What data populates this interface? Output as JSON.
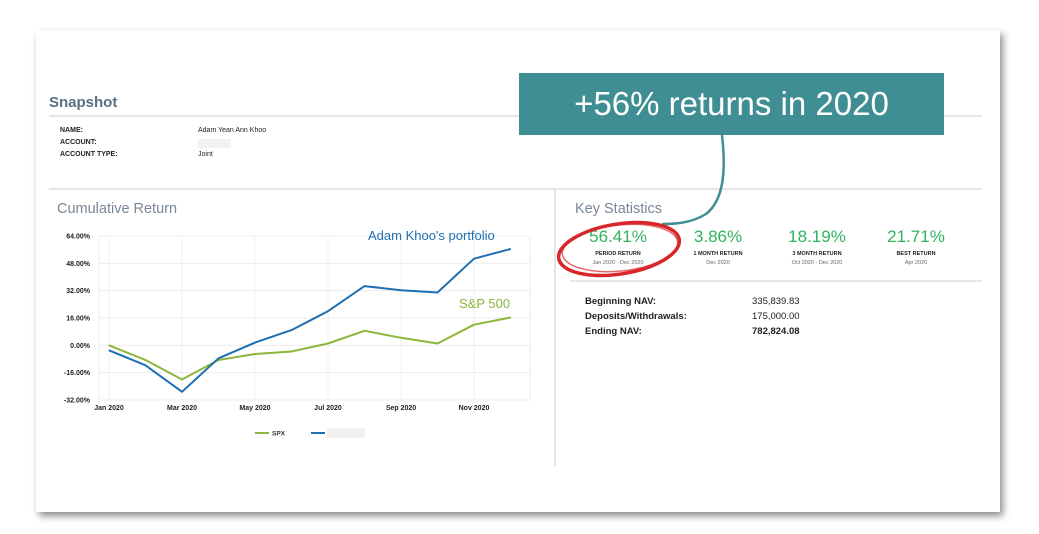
{
  "callout": {
    "text": "+56% returns in 2020"
  },
  "snapshot": {
    "title": "Snapshot",
    "name_label": "NAME:",
    "name_value": "Adam Yean Ann Khoo",
    "account_label": "ACCOUNT:",
    "account_type_label": "ACCOUNT TYPE:",
    "account_type_value": "Joint"
  },
  "cumulative": {
    "title": "Cumulative Return"
  },
  "chart_data": {
    "type": "line",
    "title": "Cumulative Return",
    "x_ticks": [
      "Jan 2020",
      "Mar 2020",
      "May 2020",
      "Jul 2020",
      "Sep 2020",
      "Nov 2020"
    ],
    "y_ticks": [
      "64.00%",
      "48.00%",
      "32.00%",
      "16.00%",
      "0.00%",
      "-16.00%",
      "-32.00%"
    ],
    "ylim": [
      -32,
      64
    ],
    "x": [
      "Jan 2020",
      "Feb 2020",
      "Mar 2020",
      "Apr 2020",
      "May 2020",
      "Jun 2020",
      "Jul 2020",
      "Aug 2020",
      "Sep 2020",
      "Oct 2020",
      "Nov 2020",
      "Dec 2020"
    ],
    "series": [
      {
        "name": "SPX",
        "color": "#8cb63c",
        "values": [
          0,
          -8.6,
          -20,
          -8.6,
          -5.1,
          -3.6,
          1.1,
          8.5,
          4.4,
          1.1,
          12.1,
          16.3
        ]
      },
      {
        "name": "",
        "color": "#1f6fb2",
        "values": [
          -2.9,
          -11.7,
          -27.2,
          -7.6,
          1.6,
          8.9,
          20,
          34.7,
          32.3,
          30.9,
          50.7,
          56.4
        ]
      }
    ],
    "annotations": [
      "Adam Khoo's portfolio",
      "S&P 500"
    ],
    "legend_position": "bottom",
    "grid": true
  },
  "key_stats": {
    "title": "Key Statistics",
    "items": [
      {
        "value": "56.41%",
        "label": "PERIOD RETURN",
        "period": "Jan 2020 - Dec 2020"
      },
      {
        "value": "3.86%",
        "label": "1 MONTH RETURN",
        "period": "Dec 2020"
      },
      {
        "value": "18.19%",
        "label": "3 MONTH RETURN",
        "period": "Oct 2020 - Dec 2020"
      },
      {
        "value": "21.71%",
        "label": "BEST RETURN",
        "period": "Apr 2020"
      }
    ],
    "highlight_color": "#2fb35c"
  },
  "nav": [
    {
      "label": "Beginning NAV:",
      "value": "335,839.83"
    },
    {
      "label": "Deposits/Withdrawals:",
      "value": "175,000.00"
    },
    {
      "label": "Ending NAV:",
      "value": "782,824.08"
    }
  ]
}
